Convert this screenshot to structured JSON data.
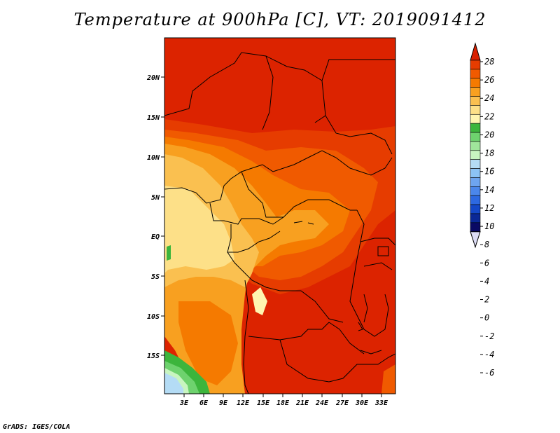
{
  "title": "Temperature at 900hPa [C], VT: 2019091412",
  "credit": "GrADS: IGES/COLA",
  "map": {
    "lat_ticks": [
      "20N",
      "15N",
      "10N",
      "5N",
      "EQ",
      "5S",
      "10S",
      "15S"
    ],
    "lon_ticks": [
      "3E",
      "6E",
      "9E",
      "12E",
      "15E",
      "18E",
      "21E",
      "24E",
      "27E",
      "30E",
      "33E"
    ]
  },
  "colorbar": {
    "labels": [
      "28",
      "26",
      "24",
      "22",
      "20",
      "18",
      "16",
      "14",
      "12",
      "10",
      "8",
      "6",
      "4",
      "2",
      "0",
      "-2",
      "-4",
      "-6"
    ],
    "colors": [
      "#d92000",
      "#e63c00",
      "#f05a00",
      "#f57a00",
      "#f8a020",
      "#fac050",
      "#fde088",
      "#fff5b0",
      "#3cb53c",
      "#6ed26e",
      "#a0e69b",
      "#c8f5c0",
      "#b4dcf5",
      "#8cc3f5",
      "#6ea5f0",
      "#4b87eb",
      "#2d69e1",
      "#1448c8",
      "#0a2896",
      "#0a0a64",
      "#dcdcf5"
    ]
  }
}
